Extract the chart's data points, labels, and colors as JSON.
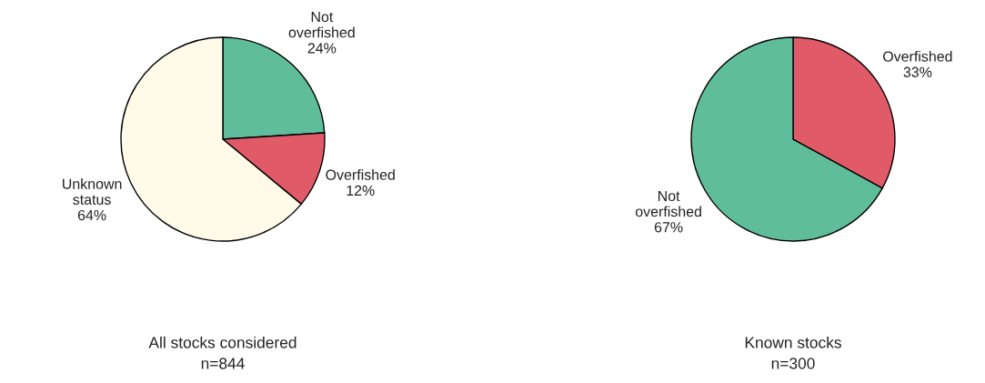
{
  "chart_data": [
    {
      "type": "pie",
      "title": "All stocks considered",
      "subtitle": "n=844",
      "categories": [
        "Not\noverfished",
        "Overfished",
        "Unknown\nstatus"
      ],
      "values": [
        24,
        12,
        64
      ],
      "colors": [
        "#5fbd9b",
        "#e05a68",
        "#fffbe8"
      ],
      "value_labels": [
        "24%",
        "12%",
        "64%"
      ]
    },
    {
      "type": "pie",
      "title": "Known stocks",
      "subtitle": "n=300",
      "categories": [
        "Overfished",
        "Not\noverfished"
      ],
      "values": [
        33,
        67
      ],
      "colors": [
        "#e05a68",
        "#5fbd9b"
      ],
      "value_labels": [
        "33%",
        "67%"
      ]
    }
  ]
}
